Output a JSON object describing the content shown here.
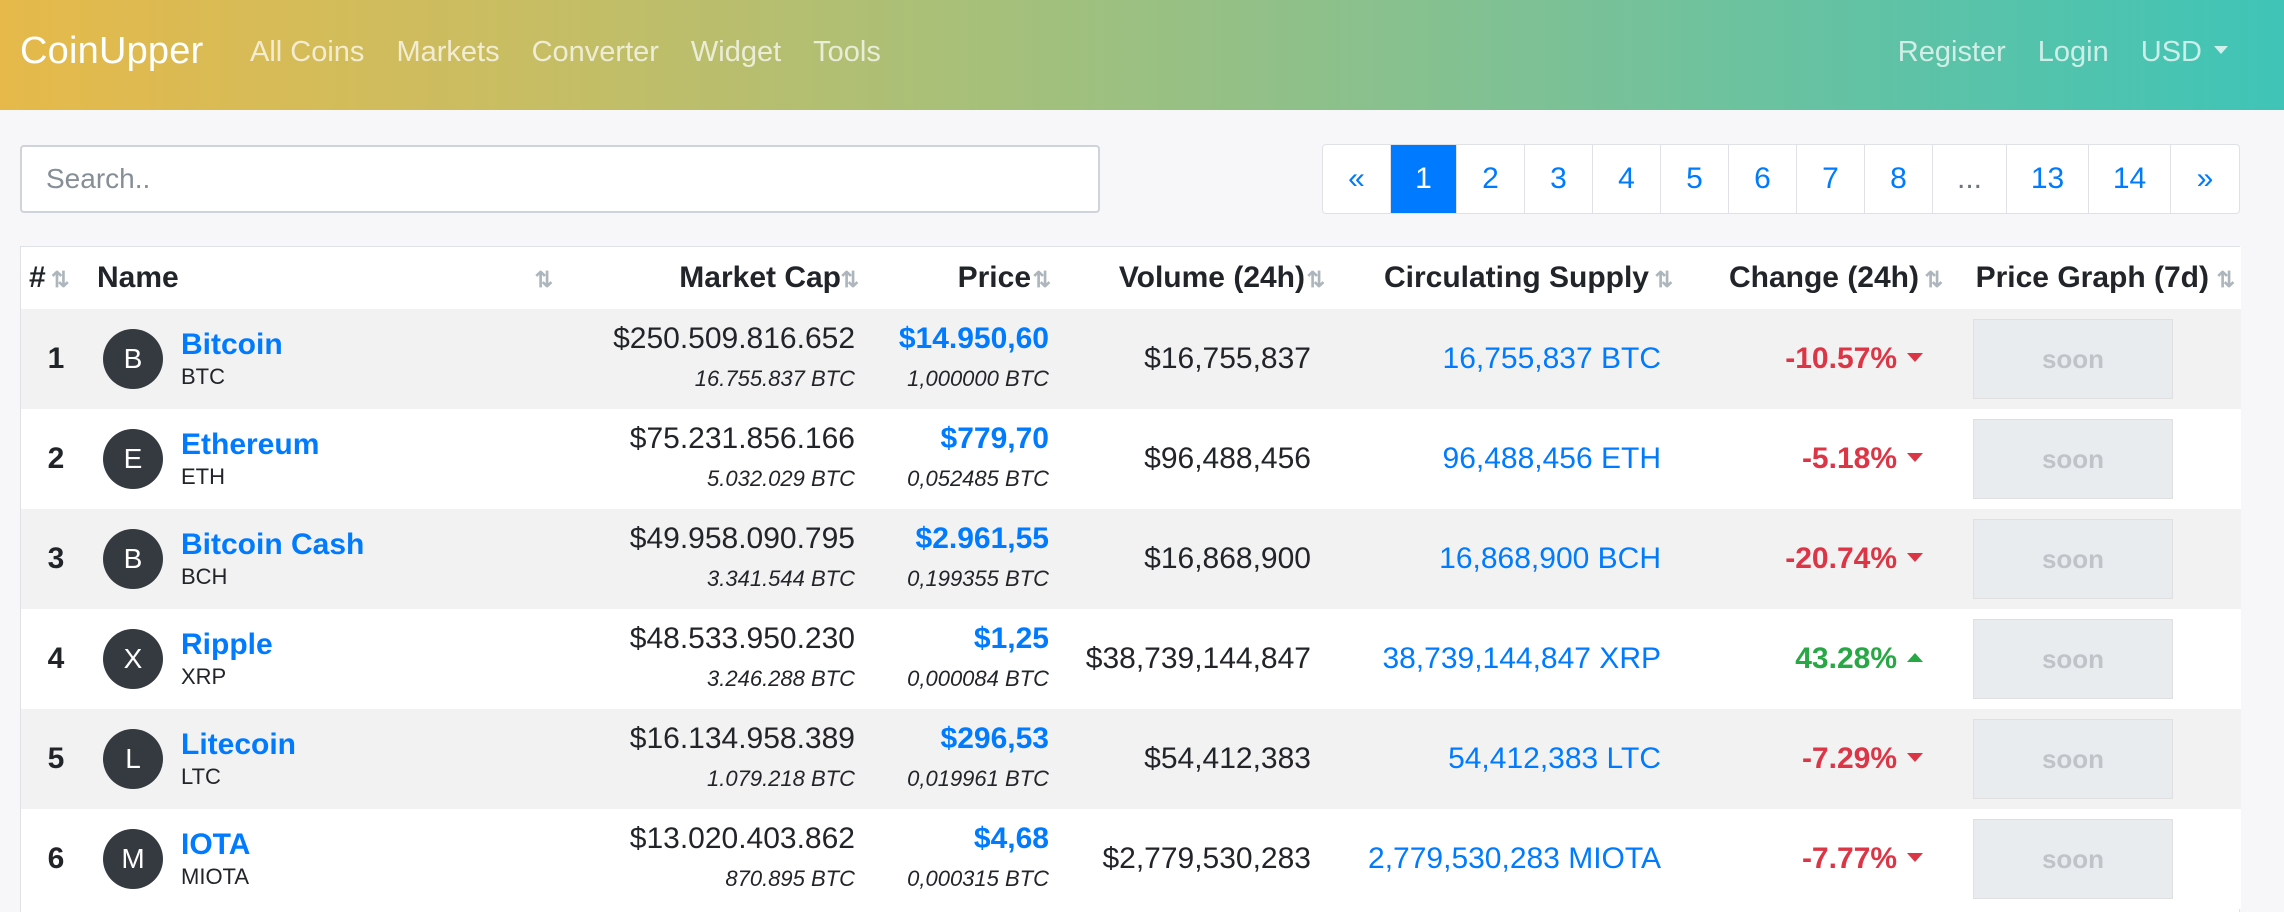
{
  "navbar": {
    "brand": "CoinUpper",
    "links": [
      "All Coins",
      "Markets",
      "Converter",
      "Widget",
      "Tools"
    ],
    "right_links": [
      "Register",
      "Login"
    ],
    "currency": "USD",
    "gradient_start": "#e6b94a",
    "gradient_end": "#3fc4b7"
  },
  "search": {
    "placeholder": "Search.."
  },
  "pagination": {
    "prev": "«",
    "pages": [
      "1",
      "2",
      "3",
      "4",
      "5",
      "6",
      "7",
      "8",
      "...",
      "13",
      "14"
    ],
    "next": "»",
    "active": "1"
  },
  "table": {
    "headers": {
      "rank": "#",
      "name": "Name",
      "market_cap": "Market Cap",
      "price": "Price",
      "volume": "Volume (24h)",
      "supply": "Circulating Supply",
      "change": "Change (24h)",
      "graph": "Price Graph (7d)"
    },
    "rows": [
      {
        "rank": "1",
        "initial": "B",
        "name": "Bitcoin",
        "symbol": "BTC",
        "market_cap": "$250.509.816.652",
        "market_cap_btc": "16.755.837 BTC",
        "price": "$14.950,60",
        "price_btc": "1,000000 BTC",
        "volume": "$16,755,837",
        "supply": "16,755,837 BTC",
        "change": "-10.57%",
        "direction": "down",
        "graph": "soon"
      },
      {
        "rank": "2",
        "initial": "E",
        "name": "Ethereum",
        "symbol": "ETH",
        "market_cap": "$75.231.856.166",
        "market_cap_btc": "5.032.029 BTC",
        "price": "$779,70",
        "price_btc": "0,052485 BTC",
        "volume": "$96,488,456",
        "supply": "96,488,456 ETH",
        "change": "-5.18%",
        "direction": "down",
        "graph": "soon"
      },
      {
        "rank": "3",
        "initial": "B",
        "name": "Bitcoin Cash",
        "symbol": "BCH",
        "market_cap": "$49.958.090.795",
        "market_cap_btc": "3.341.544 BTC",
        "price": "$2.961,55",
        "price_btc": "0,199355 BTC",
        "volume": "$16,868,900",
        "supply": "16,868,900 BCH",
        "change": "-20.74%",
        "direction": "down",
        "graph": "soon"
      },
      {
        "rank": "4",
        "initial": "X",
        "name": "Ripple",
        "symbol": "XRP",
        "market_cap": "$48.533.950.230",
        "market_cap_btc": "3.246.288 BTC",
        "price": "$1,25",
        "price_btc": "0,000084 BTC",
        "volume": "$38,739,144,847",
        "supply": "38,739,144,847 XRP",
        "change": "43.28%",
        "direction": "up",
        "graph": "soon"
      },
      {
        "rank": "5",
        "initial": "L",
        "name": "Litecoin",
        "symbol": "LTC",
        "market_cap": "$16.134.958.389",
        "market_cap_btc": "1.079.218 BTC",
        "price": "$296,53",
        "price_btc": "0,019961 BTC",
        "volume": "$54,412,383",
        "supply": "54,412,383 LTC",
        "change": "-7.29%",
        "direction": "down",
        "graph": "soon"
      },
      {
        "rank": "6",
        "initial": "M",
        "name": "IOTA",
        "symbol": "MIOTA",
        "market_cap": "$13.020.403.862",
        "market_cap_btc": "870.895 BTC",
        "price": "$4,68",
        "price_btc": "0,000315 BTC",
        "volume": "$2,779,530,283",
        "supply": "2,779,530,283 MIOTA",
        "change": "-7.77%",
        "direction": "down",
        "graph": "soon"
      }
    ]
  }
}
